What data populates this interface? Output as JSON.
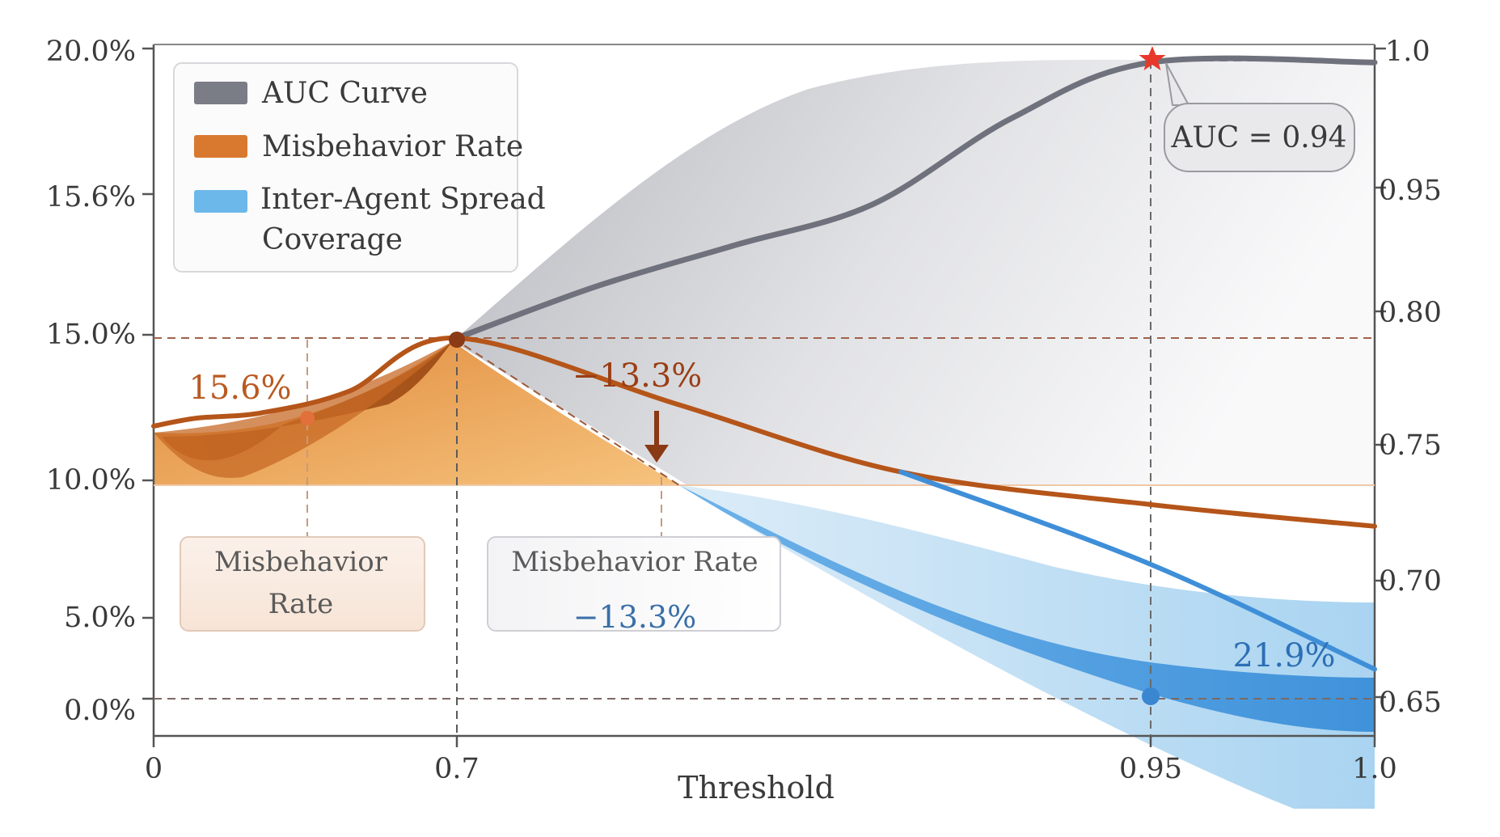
{
  "chart_data": {
    "type": "area",
    "xlabel": "Threshold",
    "x_ticks": [
      {
        "value": 0,
        "label": "0"
      },
      {
        "value": 0.7,
        "label": "0.7"
      },
      {
        "value": 0.95,
        "label": "0.95"
      },
      {
        "value": 1.0,
        "label": "1.0"
      }
    ],
    "y_left_ticks": [
      "20.0%",
      "15.6%",
      "15.0%",
      "10.0%",
      "5.0%",
      "0.0%"
    ],
    "y_right_ticks": [
      "1.0",
      "0.95",
      "0.80",
      "0.75",
      "0.70",
      "0.65"
    ],
    "legend": {
      "position": "top-left",
      "items": [
        {
          "label": "AUC Curve",
          "color": "#7a7c86"
        },
        {
          "label": "Misbehavior Rate",
          "color": "#d9782f"
        },
        {
          "label": "Inter-Agent Spread",
          "label2": "Coverage",
          "color": "#6db8ea"
        }
      ]
    },
    "series": [
      {
        "name": "AUC Curve",
        "color": "#6f717c",
        "points": [
          [
            0.7,
            0.79
          ],
          [
            0.75,
            0.83
          ],
          [
            0.8,
            0.88
          ],
          [
            0.85,
            0.93
          ],
          [
            0.9,
            0.975
          ],
          [
            0.95,
            0.995
          ],
          [
            1.0,
            0.995
          ]
        ]
      },
      {
        "name": "Misbehavior Rate",
        "color": "#b55519",
        "points": [
          [
            0.0,
            0.757
          ],
          [
            0.1,
            0.76
          ],
          [
            0.25,
            0.762
          ],
          [
            0.45,
            0.77
          ],
          [
            0.7,
            0.79
          ],
          [
            0.78,
            0.765
          ],
          [
            0.86,
            0.74
          ],
          [
            0.95,
            0.728
          ],
          [
            1.0,
            0.72
          ]
        ]
      },
      {
        "name": "Inter-Agent Spread Coverage",
        "color": "#3f8fd8",
        "points": [
          [
            0.86,
            0.74
          ],
          [
            0.95,
            0.706
          ],
          [
            1.0,
            0.662
          ]
        ]
      }
    ],
    "annotations": {
      "auc_label": "AUC = 0.94",
      "left_rate_label": "15.6%",
      "drop_label": "−13.3%",
      "spread_label": "21.9%",
      "box_left_line1": "Misbehavior",
      "box_left_line2": "Rate",
      "box_mid_line1": "Misbehavior Rate",
      "box_mid_line2": "−13.3%"
    },
    "colors": {
      "auc": "#6f717c",
      "misbehavior": "#b55519",
      "misbehavior_light": "#f2b16b",
      "spread": "#3f8fd8",
      "spread_light": "#bfe0f6",
      "guide": "#a0705a",
      "star": "#e8382c"
    }
  }
}
